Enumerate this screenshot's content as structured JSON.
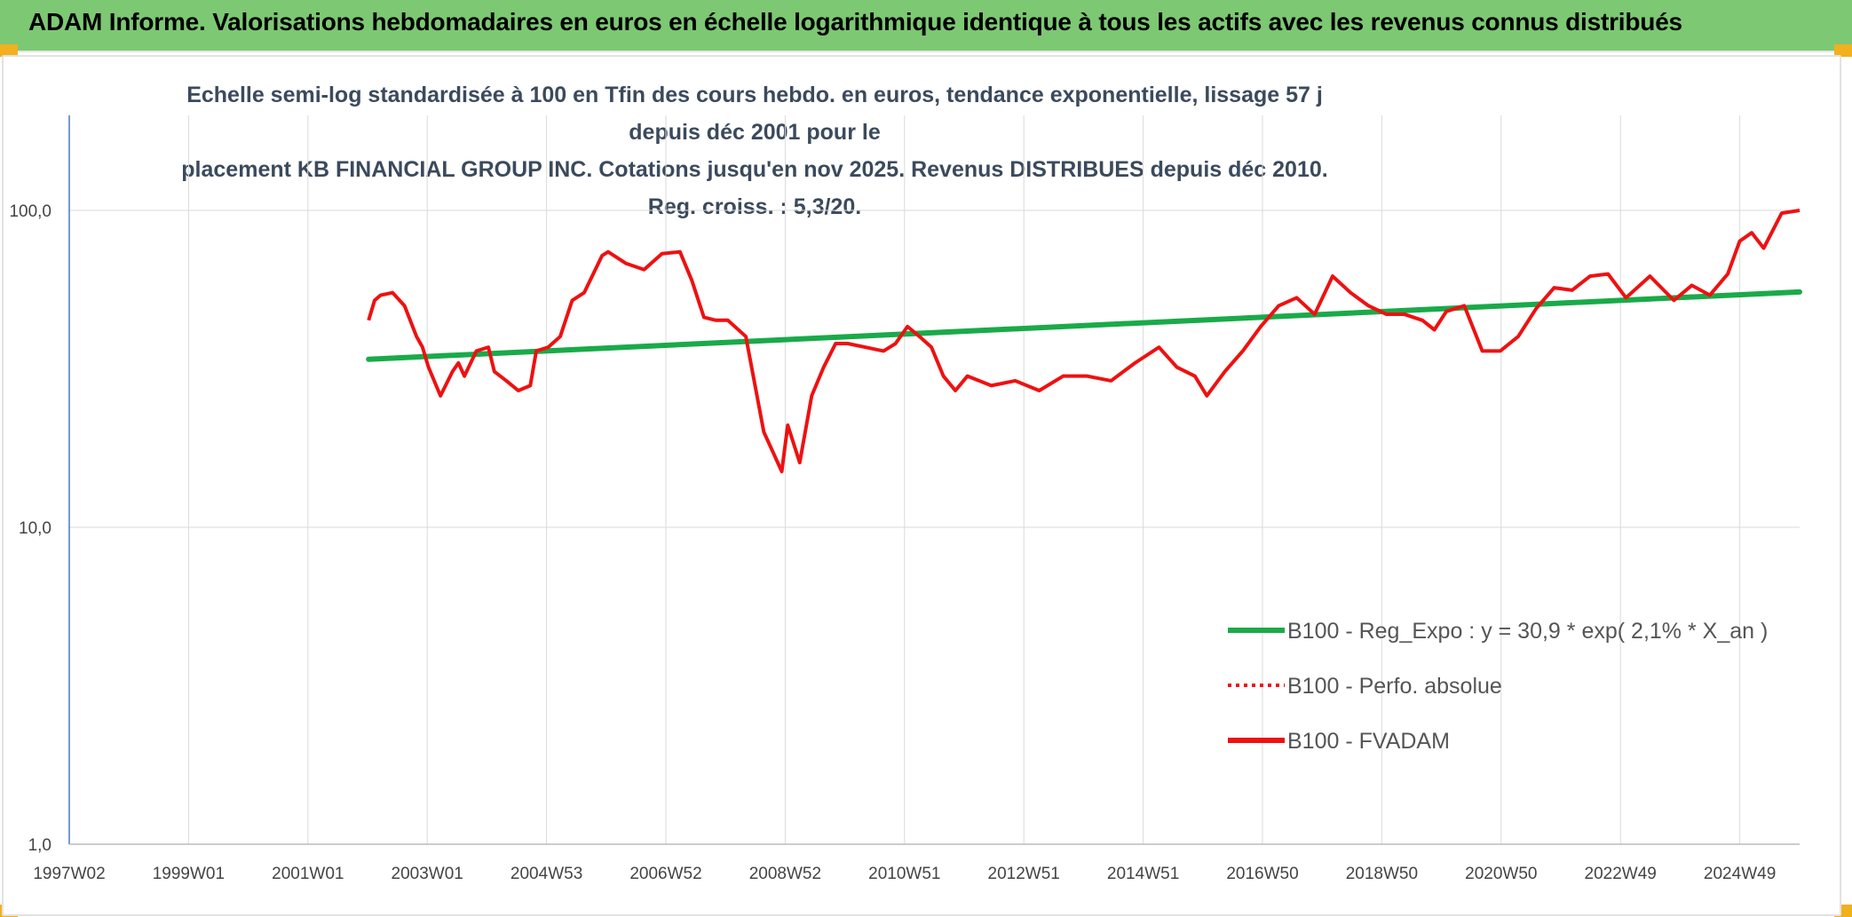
{
  "banner": {
    "title": "ADAM Informe. Valorisations hebdomadaires en euros en échelle logarithmique identique à tous les actifs avec les revenus connus distribués"
  },
  "colors": {
    "banner_bg": "#7dc873",
    "regression": "#1aaa4a",
    "fvadam": "#ee1111",
    "perfo": "#ee1111",
    "grid": "#dadada",
    "corner": "#f2b01e"
  },
  "chart_data": {
    "type": "line",
    "title_line1": "Echelle semi-log standardisée à 100 en Tfin des cours hebdo. en euros, tendance exponentielle, lissage 57 j depuis déc 2001 pour le",
    "title_line2": "placement KB FINANCIAL GROUP INC. Cotations jusqu'en nov 2025. Revenus DISTRIBUES depuis déc 2010. Reg. croiss. : 5,3/20.",
    "y_scale": "log",
    "ylim": [
      1,
      100
    ],
    "y_ticks": [
      "1,0",
      "10,0",
      "100,0"
    ],
    "x_ticks": [
      "1997W02",
      "1999W01",
      "2001W01",
      "2003W01",
      "2004W53",
      "2006W52",
      "2008W52",
      "2010W51",
      "2012W51",
      "2014W51",
      "2016W50",
      "2018W50",
      "2020W50",
      "2022W49",
      "2024W49"
    ],
    "xlim": [
      1997.0,
      2025.9
    ],
    "legend_position": "center-right",
    "legend": [
      {
        "name": "B100 - Reg_Expo : y = 30,9 * exp( 2,1% *  X_an )",
        "style": "solid-green"
      },
      {
        "name": "B100 - Perfo. absolue",
        "style": "dotted-red"
      },
      {
        "name": "B100 - FVADAM",
        "style": "solid-red"
      }
    ],
    "series": [
      {
        "name": "B100 - Reg_Expo : y = 30,9 * exp( 2,1% *  X_an )",
        "x": [
          2002.0,
          2025.9
        ],
        "y": [
          33.9,
          55.3
        ]
      },
      {
        "name": "B100 - FVADAM",
        "x": [
          2002.0,
          2002.1,
          2002.2,
          2002.4,
          2002.6,
          2002.8,
          2002.9,
          2003.0,
          2003.2,
          2003.4,
          2003.5,
          2003.6,
          2003.8,
          2004.0,
          2004.1,
          2004.3,
          2004.5,
          2004.7,
          2004.8,
          2005.0,
          2005.2,
          2005.4,
          2005.6,
          2005.9,
          2006.0,
          2006.3,
          2006.6,
          2006.9,
          2007.2,
          2007.4,
          2007.6,
          2007.8,
          2008.0,
          2008.3,
          2008.6,
          2008.9,
          2009.0,
          2009.2,
          2009.4,
          2009.6,
          2009.8,
          2010.0,
          2010.3,
          2010.6,
          2010.8,
          2011.0,
          2011.2,
          2011.4,
          2011.6,
          2011.8,
          2012.0,
          2012.4,
          2012.8,
          2013.2,
          2013.6,
          2014.0,
          2014.4,
          2014.8,
          2015.2,
          2015.5,
          2015.8,
          2016.0,
          2016.3,
          2016.6,
          2016.9,
          2017.2,
          2017.5,
          2017.8,
          2018.1,
          2018.4,
          2018.7,
          2019.0,
          2019.3,
          2019.6,
          2019.8,
          2020.0,
          2020.3,
          2020.6,
          2020.9,
          2021.2,
          2021.5,
          2021.8,
          2022.1,
          2022.4,
          2022.7,
          2023.0,
          2023.4,
          2023.8,
          2024.1,
          2024.4,
          2024.7,
          2024.9,
          2025.1,
          2025.3,
          2025.6,
          2025.9
        ],
        "y": [
          45,
          52,
          54,
          55,
          50,
          40,
          37,
          32,
          26,
          31,
          33,
          30,
          36,
          37,
          31,
          29,
          27,
          28,
          36,
          37,
          40,
          52,
          55,
          72,
          74,
          68,
          65,
          73,
          74,
          60,
          46,
          45,
          45,
          40,
          20,
          15,
          21,
          16,
          26,
          32,
          38,
          38,
          37,
          36,
          38,
          43,
          40,
          37,
          30,
          27,
          30,
          28,
          29,
          27,
          30,
          30,
          29,
          33,
          37,
          32,
          30,
          26,
          31,
          36,
          43,
          50,
          53,
          47,
          62,
          55,
          50,
          47,
          47,
          45,
          42,
          48,
          50,
          36,
          36,
          40,
          49,
          57,
          56,
          62,
          63,
          53,
          62,
          52,
          58,
          54,
          63,
          80,
          85,
          76,
          98,
          100
        ]
      }
    ]
  }
}
